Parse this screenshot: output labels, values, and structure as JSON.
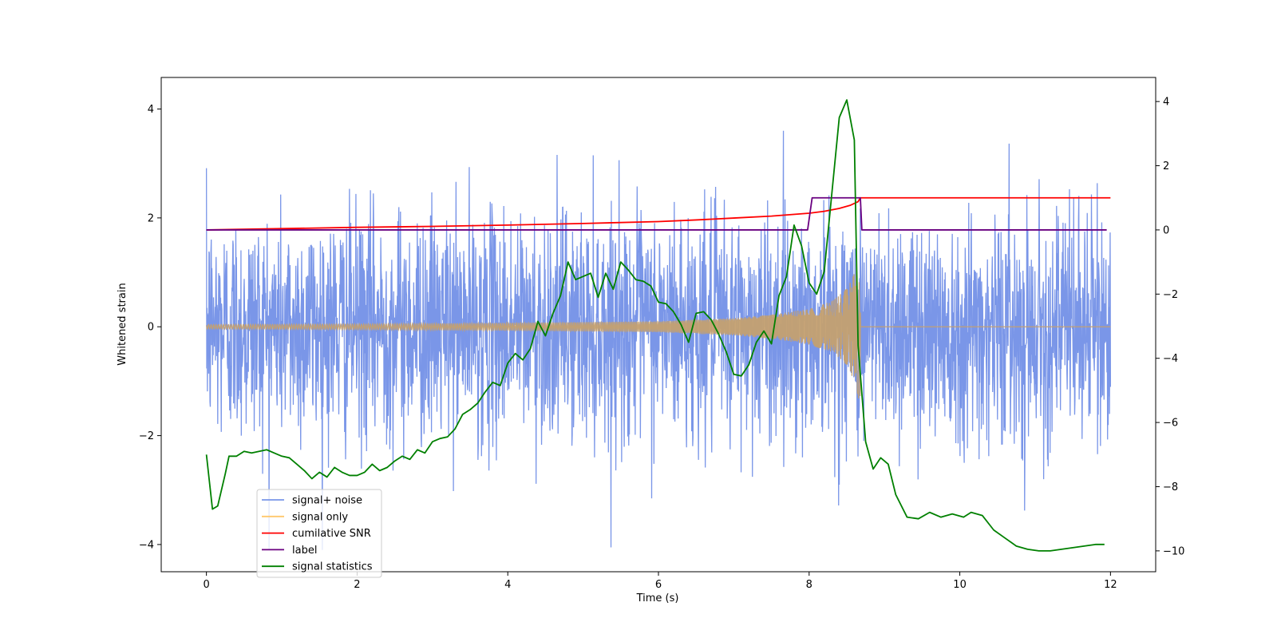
{
  "chart_data": {
    "type": "line",
    "title": "",
    "xlabel": "Time (s)",
    "ylabel": "Whitened strain",
    "y2label": "",
    "xlim": [
      -0.6,
      12.6
    ],
    "ylim": [
      -4.5,
      4.58
    ],
    "y2lim": [
      -10.65,
      4.75
    ],
    "xticks": [
      0,
      2,
      4,
      6,
      8,
      10,
      12
    ],
    "yticks": [
      -4,
      -2,
      0,
      2,
      4
    ],
    "y2ticks": [
      -10,
      -8,
      -6,
      -4,
      -2,
      0,
      2,
      4
    ],
    "grid": false,
    "legend_position": "lower-left",
    "legend": [
      {
        "label": "signal+ noise",
        "color": "#7a96e8"
      },
      {
        "label": "signal only",
        "color": "#ffc86b"
      },
      {
        "label": "cumilative SNR",
        "color": "#ff0000"
      },
      {
        "label": "label",
        "color": "#6a0080"
      },
      {
        "label": "signal statistics",
        "color": "#008000"
      }
    ],
    "series": [
      {
        "name": "signal+ noise",
        "axis": "left",
        "color": "#7a96e8",
        "note_kind": "noise",
        "approx_std": 1.0,
        "approx_max": 4.15,
        "approx_min": -4.1,
        "x_range": [
          0,
          12
        ]
      },
      {
        "name": "signal only",
        "axis": "left",
        "color": "#c4a070",
        "note_kind": "chirp",
        "x_range": [
          0,
          12
        ],
        "merger_time": 8.68,
        "envelope_x": [
          0,
          2,
          4,
          6,
          7,
          7.5,
          8.0,
          8.3,
          8.5,
          8.6,
          8.68
        ],
        "envelope_y": [
          0.04,
          0.05,
          0.07,
          0.1,
          0.16,
          0.22,
          0.33,
          0.47,
          0.7,
          1.0,
          1.45
        ]
      },
      {
        "name": "cumilative SNR",
        "axis": "right",
        "color": "#ff0000",
        "x": [
          0,
          1,
          2,
          3,
          4,
          5,
          6,
          6.5,
          7,
          7.5,
          8.0,
          8.2,
          8.4,
          8.55,
          8.65,
          8.68,
          12
        ],
        "y": [
          0.0,
          0.04,
          0.08,
          0.11,
          0.15,
          0.2,
          0.26,
          0.31,
          0.37,
          0.43,
          0.52,
          0.58,
          0.67,
          0.77,
          0.88,
          1.0,
          1.0
        ]
      },
      {
        "name": "label",
        "axis": "right",
        "color": "#6a0080",
        "x": [
          0,
          7.98,
          8.04,
          8.68,
          8.7,
          11.95
        ],
        "y": [
          0,
          0,
          1,
          1,
          0,
          0
        ]
      },
      {
        "name": "signal statistics",
        "axis": "right",
        "color": "#008000",
        "x": [
          0,
          0.08,
          0.15,
          0.25,
          0.3,
          0.4,
          0.5,
          0.6,
          0.7,
          0.8,
          0.9,
          1.0,
          1.1,
          1.2,
          1.3,
          1.4,
          1.5,
          1.6,
          1.7,
          1.8,
          1.9,
          2.0,
          2.1,
          2.2,
          2.3,
          2.4,
          2.5,
          2.6,
          2.7,
          2.8,
          2.9,
          3.0,
          3.1,
          3.2,
          3.3,
          3.4,
          3.5,
          3.6,
          3.7,
          3.8,
          3.9,
          4.0,
          4.1,
          4.2,
          4.3,
          4.4,
          4.5,
          4.6,
          4.7,
          4.8,
          4.9,
          5.0,
          5.1,
          5.2,
          5.3,
          5.4,
          5.5,
          5.6,
          5.7,
          5.8,
          5.9,
          6.0,
          6.1,
          6.2,
          6.3,
          6.4,
          6.5,
          6.6,
          6.7,
          6.8,
          6.9,
          7.0,
          7.1,
          7.2,
          7.3,
          7.4,
          7.5,
          7.6,
          7.7,
          7.8,
          7.9,
          8.0,
          8.1,
          8.2,
          8.3,
          8.4,
          8.5,
          8.6,
          8.65,
          8.75,
          8.85,
          8.95,
          9.05,
          9.15,
          9.3,
          9.45,
          9.6,
          9.75,
          9.9,
          10.05,
          10.15,
          10.3,
          10.45,
          10.6,
          10.75,
          10.9,
          11.05,
          11.2,
          11.35,
          11.5,
          11.65,
          11.8,
          11.92
        ],
        "y": [
          -7.0,
          -8.7,
          -8.6,
          -7.6,
          -7.05,
          -7.05,
          -6.9,
          -6.95,
          -6.9,
          -6.85,
          -6.95,
          -7.05,
          -7.1,
          -7.3,
          -7.5,
          -7.75,
          -7.55,
          -7.7,
          -7.4,
          -7.55,
          -7.65,
          -7.65,
          -7.55,
          -7.3,
          -7.5,
          -7.4,
          -7.2,
          -7.05,
          -7.15,
          -6.85,
          -6.95,
          -6.6,
          -6.5,
          -6.45,
          -6.2,
          -5.75,
          -5.6,
          -5.4,
          -5.05,
          -4.75,
          -4.85,
          -4.15,
          -3.85,
          -4.05,
          -3.7,
          -2.85,
          -3.3,
          -2.6,
          -2.05,
          -1.0,
          -1.55,
          -1.45,
          -1.35,
          -2.1,
          -1.35,
          -1.85,
          -1.0,
          -1.25,
          -1.55,
          -1.6,
          -1.75,
          -2.25,
          -2.3,
          -2.55,
          -2.95,
          -3.5,
          -2.6,
          -2.55,
          -2.8,
          -3.25,
          -3.8,
          -4.5,
          -4.55,
          -4.2,
          -3.5,
          -3.15,
          -3.55,
          -2.05,
          -1.45,
          0.15,
          -0.5,
          -1.65,
          -2.0,
          -1.3,
          1.1,
          3.5,
          4.05,
          2.8,
          -3.6,
          -6.6,
          -7.45,
          -7.1,
          -7.3,
          -8.25,
          -8.95,
          -9.0,
          -8.8,
          -8.95,
          -8.85,
          -8.95,
          -8.8,
          -8.9,
          -9.35,
          -9.6,
          -9.85,
          -9.95,
          -10.0,
          -10.0,
          -9.95,
          -9.9,
          -9.85,
          -9.8,
          -9.8
        ]
      }
    ]
  }
}
